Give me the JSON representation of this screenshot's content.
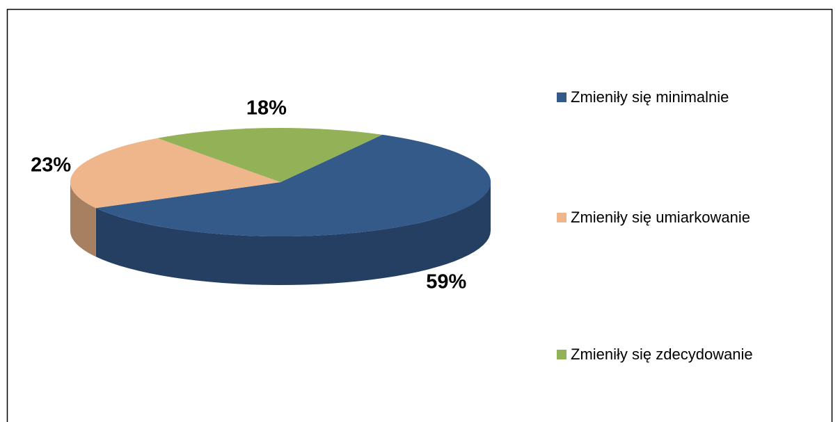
{
  "chart_data": {
    "type": "pie",
    "categories": [
      "Zmieniły się minimalnie",
      "Zmieniły się umiarkowanie",
      "Zmieniły się zdecydowanie"
    ],
    "values": [
      59,
      23,
      18
    ],
    "value_labels": [
      "59%",
      "23%",
      "18%"
    ],
    "colors": [
      "#345a8a",
      "#eeb68a",
      "#93b157"
    ],
    "legend": "right"
  }
}
